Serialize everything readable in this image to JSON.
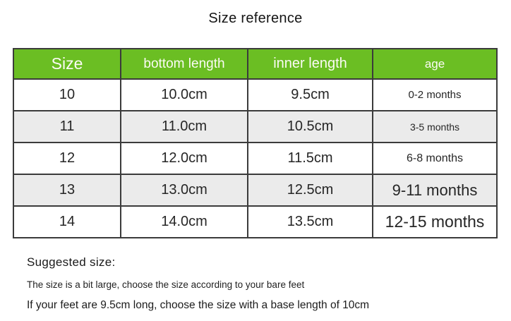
{
  "title": "Size reference",
  "colors": {
    "header-bg": "#6bbe23",
    "header-text": "#fbfbf5",
    "row-alt": "#ebebeb",
    "border": "#3b3b3b"
  },
  "chart_data": {
    "type": "table",
    "title": "Size reference",
    "columns": [
      "Size",
      "bottom length",
      "inner length",
      "age"
    ],
    "rows": [
      [
        "10",
        "10.0cm",
        "9.5cm",
        "0-2 months"
      ],
      [
        "11",
        "11.0cm",
        "10.5cm",
        "3-5 months"
      ],
      [
        "12",
        "12.0cm",
        "11.5cm",
        "6-8 months"
      ],
      [
        "13",
        "13.0cm",
        "12.5cm",
        "9-11 months"
      ],
      [
        "14",
        "14.0cm",
        "13.5cm",
        "12-15 months"
      ]
    ]
  },
  "notes": {
    "heading": "Suggested size:",
    "line1": "The size is a bit large, choose the size according to your bare feet",
    "line2": "If your feet are 9.5cm long, choose the size with a base length of 10cm"
  }
}
